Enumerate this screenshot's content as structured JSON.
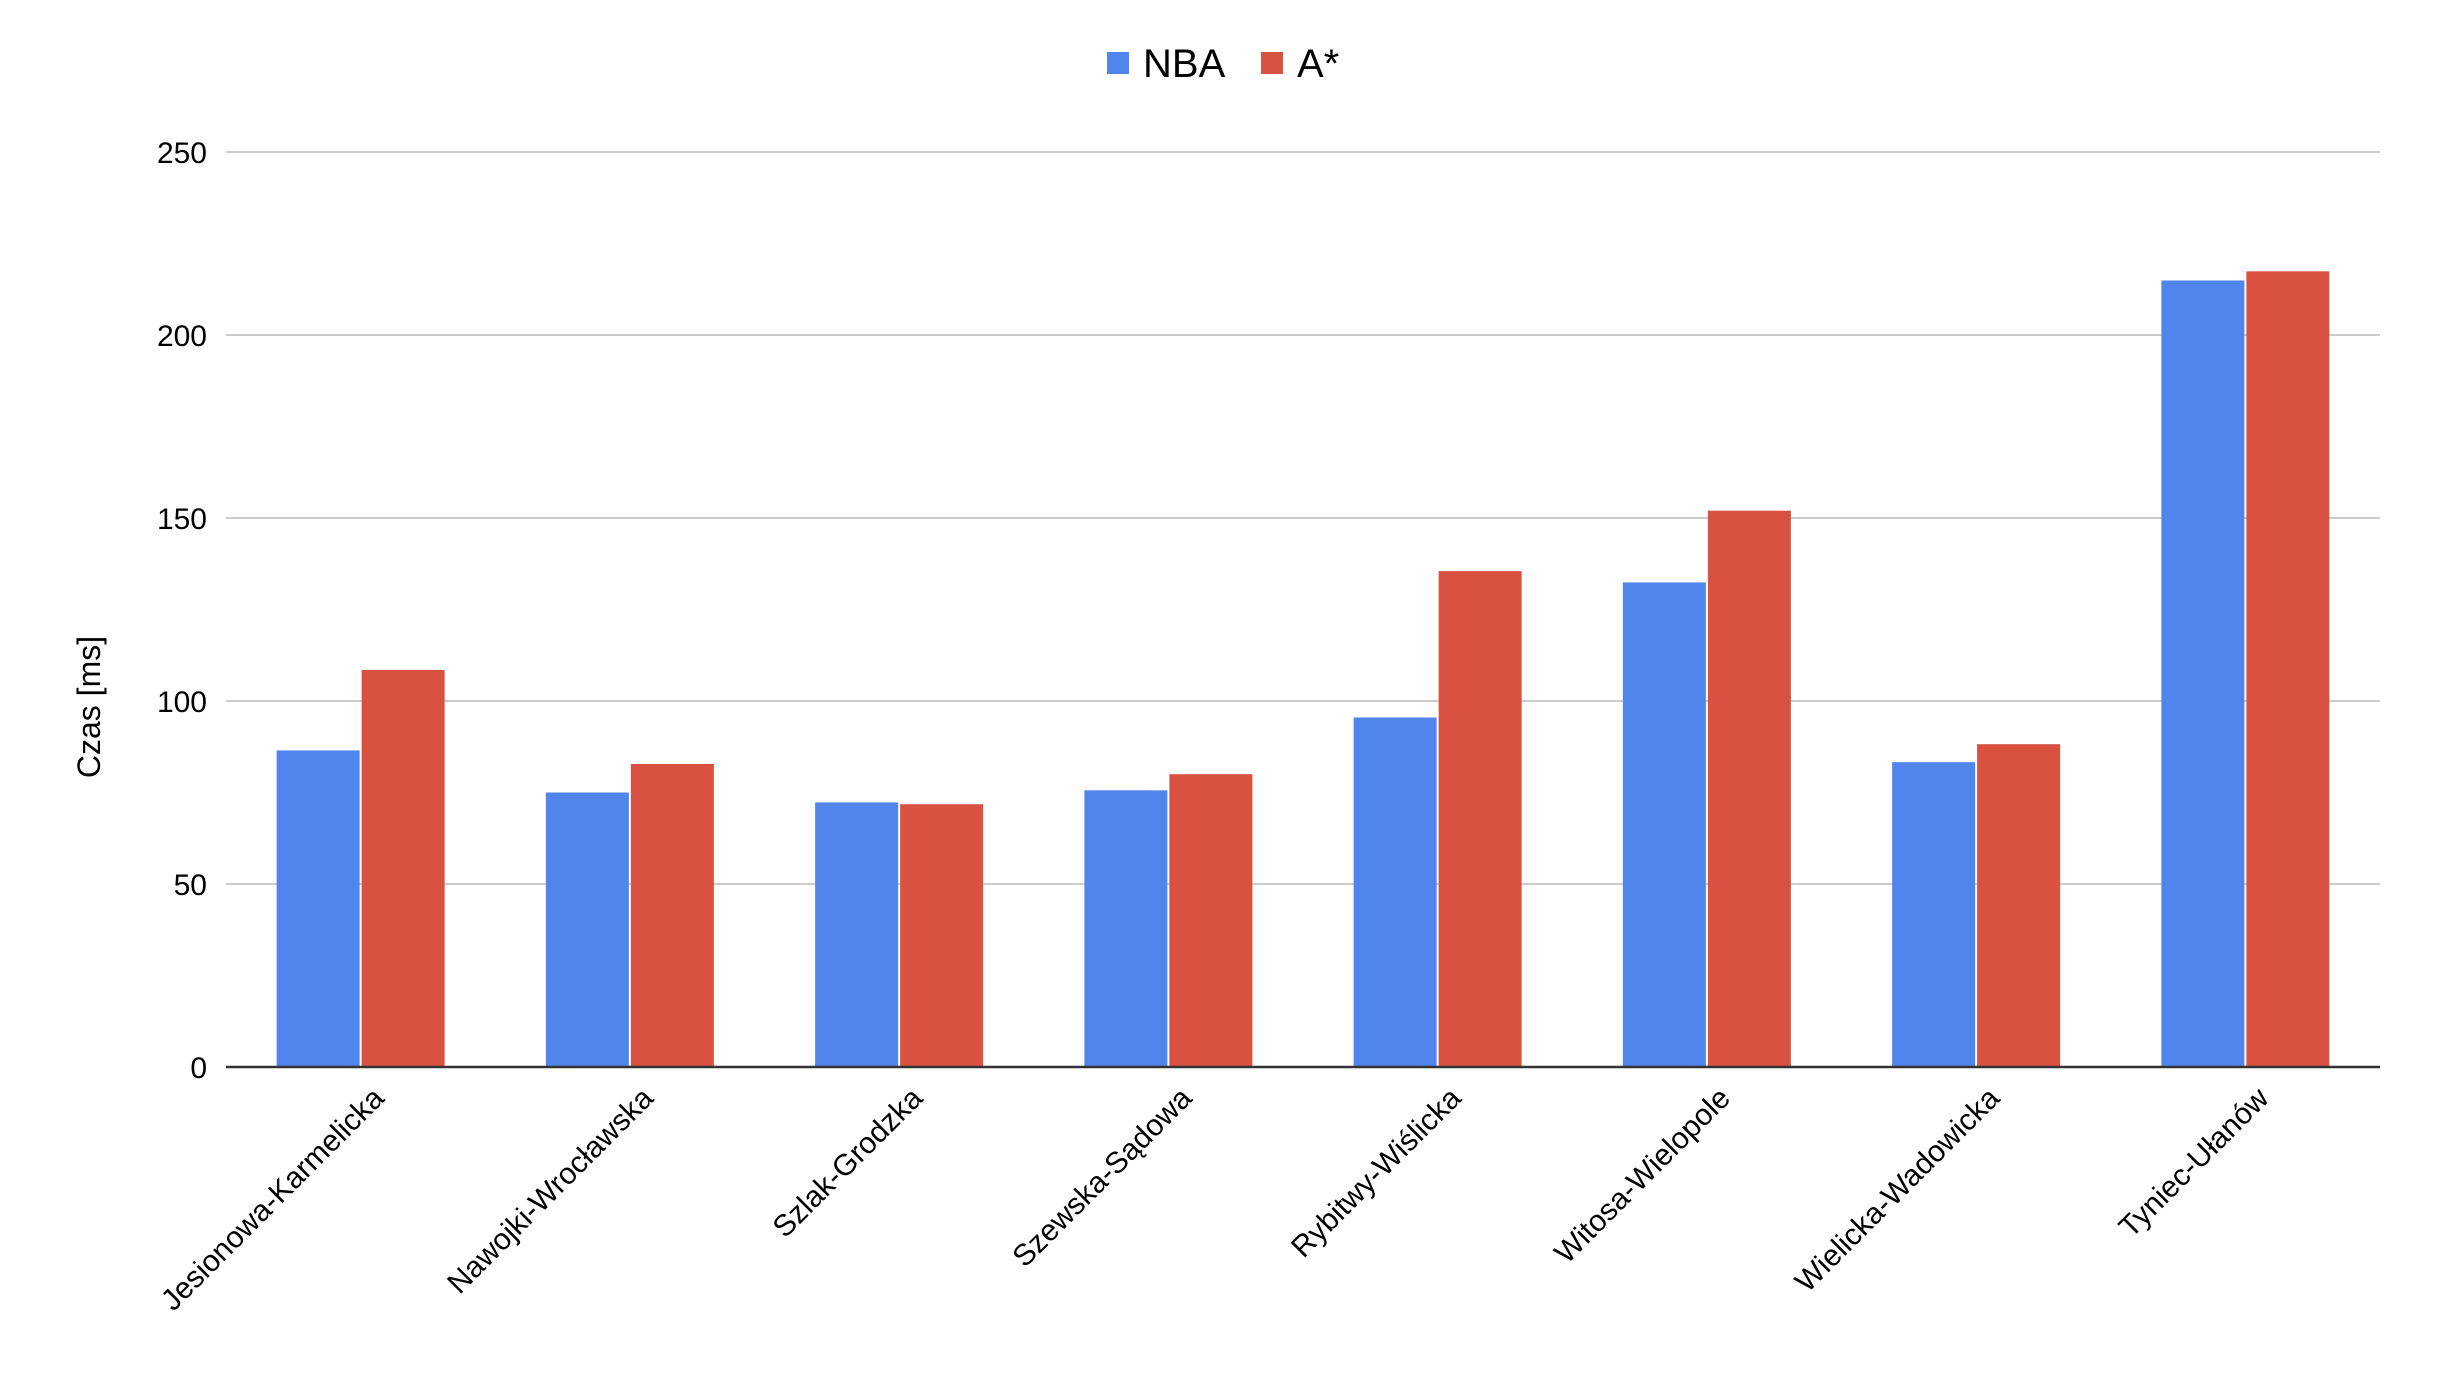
{
  "chart_data": {
    "type": "bar",
    "title": "",
    "xlabel": "",
    "ylabel": "Czas [ms]",
    "ylim": [
      0,
      250
    ],
    "yticks": [
      0,
      50,
      100,
      150,
      200,
      250
    ],
    "grid": true,
    "legend_position": "top-center",
    "categories": [
      "Jesionowa-Karmelicka",
      "Nawojki-Wrocławska",
      "Szlak-Grodzka",
      "Szewska-Sądowa",
      "Rybitwy-Wiślicka",
      "Witosa-Wielopole",
      "Wielicka-Wadowicka",
      "Tyniec-Ułanów"
    ],
    "series": [
      {
        "name": "NBA",
        "color": "#5086EC",
        "values": [
          86.5,
          75,
          72.3,
          75.6,
          95.5,
          132.4,
          83.3,
          214.9
        ]
      },
      {
        "name": "A*",
        "color": "#D95141",
        "values": [
          108.5,
          82.8,
          71.8,
          80.0,
          135.5,
          152.0,
          88.2,
          217.4
        ]
      }
    ]
  }
}
